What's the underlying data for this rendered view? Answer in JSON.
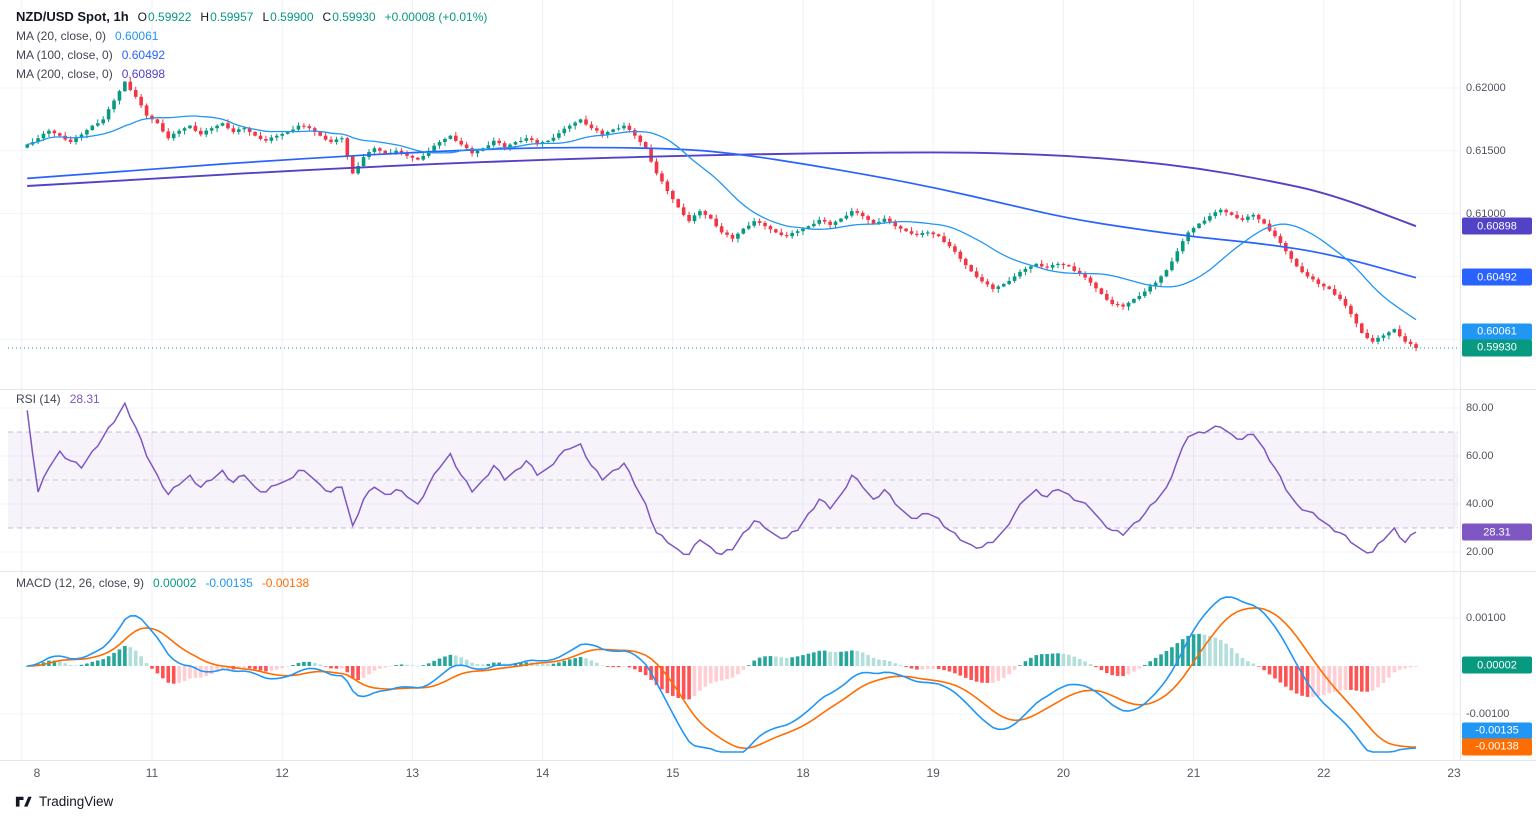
{
  "meta": {
    "watermark": "TradingView"
  },
  "legend": {
    "title": "NZD/USD Spot, 1h",
    "ohlc": [
      {
        "k": "O",
        "v": "0.59922"
      },
      {
        "k": "H",
        "v": "0.59957"
      },
      {
        "k": "L",
        "v": "0.59900"
      },
      {
        "k": "C",
        "v": "0.59930"
      }
    ],
    "change": "+0.00008 (+0.01%)",
    "ma_rows": [
      {
        "label": "MA (20, close, 0)",
        "value": "0.60061"
      },
      {
        "label": "MA (100, close, 0)",
        "value": "0.60492"
      },
      {
        "label": "MA (200, close, 0)",
        "value": "0.60898"
      }
    ],
    "rsi_label": "RSI (14)",
    "rsi_value": "28.31",
    "macd_label": "MACD (12, 26, close, 9)",
    "macd_values": {
      "hist": "0.00002",
      "macd": "-0.00135",
      "signal": "-0.00138"
    }
  },
  "chart_data": [
    {
      "type": "candlestick",
      "panel": "price",
      "title": "NZD/USD Spot, 1h",
      "timeframe": "1h",
      "x_day_labels": [
        "8",
        "11",
        "12",
        "13",
        "14",
        "15",
        "18",
        "19",
        "20",
        "21",
        "22",
        "23"
      ],
      "y_axis_labels": [
        {
          "text": "0.62000",
          "value": 0.62
        },
        {
          "text": "0.61500",
          "value": 0.615
        },
        {
          "text": "0.61000",
          "value": 0.61
        }
      ],
      "gridline_prices": [
        0.62,
        0.615,
        0.61,
        0.605,
        0.6
      ],
      "closes_2h": [
        0.6155,
        0.616,
        0.6166,
        0.6162,
        0.6157,
        0.6163,
        0.617,
        0.6175,
        0.619,
        0.6205,
        0.6193,
        0.6178,
        0.6172,
        0.616,
        0.6166,
        0.617,
        0.6163,
        0.6168,
        0.6172,
        0.6165,
        0.6168,
        0.6162,
        0.6158,
        0.6162,
        0.6165,
        0.617,
        0.6168,
        0.6162,
        0.6157,
        0.616,
        0.6132,
        0.6145,
        0.6152,
        0.6148,
        0.615,
        0.6146,
        0.6143,
        0.615,
        0.6157,
        0.6162,
        0.6155,
        0.6148,
        0.6152,
        0.6158,
        0.6153,
        0.6157,
        0.616,
        0.6156,
        0.6158,
        0.6164,
        0.617,
        0.6175,
        0.6168,
        0.6163,
        0.6167,
        0.617,
        0.6162,
        0.6152,
        0.6132,
        0.6118,
        0.6105,
        0.6094,
        0.6102,
        0.6096,
        0.6085,
        0.608,
        0.6088,
        0.6094,
        0.609,
        0.6085,
        0.6082,
        0.6086,
        0.609,
        0.6095,
        0.6091,
        0.6096,
        0.6102,
        0.6098,
        0.6092,
        0.6096,
        0.609,
        0.6086,
        0.6083,
        0.6085,
        0.6082,
        0.6074,
        0.6064,
        0.6054,
        0.6046,
        0.604,
        0.6044,
        0.605,
        0.6056,
        0.606,
        0.6057,
        0.606,
        0.6058,
        0.6052,
        0.6045,
        0.6036,
        0.6028,
        0.6026,
        0.6032,
        0.6038,
        0.6045,
        0.6055,
        0.607,
        0.6085,
        0.6092,
        0.6098,
        0.6103,
        0.6099,
        0.6095,
        0.6099,
        0.6092,
        0.6082,
        0.607,
        0.6058,
        0.605,
        0.6044,
        0.604,
        0.6032,
        0.602,
        0.6005,
        0.5998,
        0.6003,
        0.6008,
        0.5998,
        0.5993
      ],
      "last_price": 0.5993,
      "colors": {
        "up": "#089981",
        "down": "#f23645"
      },
      "overlays": [
        {
          "name": "MA 20",
          "color": "#2196f3",
          "current": 0.60061,
          "derive": "sma20"
        },
        {
          "name": "MA 100",
          "color": "#2962ff",
          "current": 0.60492,
          "points_2h": [
            [
              0,
              0.6128
            ],
            [
              12,
              0.6136
            ],
            [
              24,
              0.6143
            ],
            [
              36,
              0.6149
            ],
            [
              48,
              0.6153
            ],
            [
              60,
              0.6152
            ],
            [
              66,
              0.6147
            ],
            [
              72,
              0.6139
            ],
            [
              78,
              0.613
            ],
            [
              84,
              0.612
            ],
            [
              90,
              0.6108
            ],
            [
              96,
              0.6096
            ],
            [
              102,
              0.6088
            ],
            [
              108,
              0.6081
            ],
            [
              114,
              0.6076
            ],
            [
              120,
              0.6068
            ],
            [
              128,
              0.6049
            ]
          ]
        },
        {
          "name": "MA 200",
          "color": "#5242c6",
          "current": 0.60898,
          "points_2h": [
            [
              0,
              0.6122
            ],
            [
              12,
              0.6128
            ],
            [
              24,
              0.6134
            ],
            [
              36,
              0.6139
            ],
            [
              48,
              0.6143
            ],
            [
              60,
              0.6146
            ],
            [
              72,
              0.6148
            ],
            [
              84,
              0.6149
            ],
            [
              90,
              0.6148
            ],
            [
              96,
              0.6146
            ],
            [
              102,
              0.6142
            ],
            [
              108,
              0.6136
            ],
            [
              114,
              0.6127
            ],
            [
              120,
              0.6116
            ],
            [
              128,
              0.609
            ]
          ]
        }
      ],
      "axis_badges": [
        {
          "text": "0.60898",
          "value": 0.60898,
          "bg": "#5242c6"
        },
        {
          "text": "0.60492",
          "value": 0.60492,
          "bg": "#2962ff"
        },
        {
          "text": "0.60061",
          "value": 0.60061,
          "bg": "#2196f3"
        },
        {
          "text": "0.59930",
          "value": 0.5993,
          "bg": "#089981"
        }
      ]
    },
    {
      "type": "line",
      "panel": "rsi",
      "name": "RSI (14)",
      "color": "#7e57c2",
      "current": 28.31,
      "y_axis_labels": [
        {
          "text": "80.00",
          "value": 80
        },
        {
          "text": "60.00",
          "value": 60
        },
        {
          "text": "40.00",
          "value": 40
        },
        {
          "text": "20.00",
          "value": 20
        }
      ],
      "levels": {
        "upper": 70,
        "middle": 50,
        "lower": 30
      },
      "values_2h": [
        79,
        45,
        55,
        62,
        58,
        55,
        62,
        68,
        74,
        82,
        72,
        60,
        52,
        44,
        48,
        52,
        47,
        50,
        54,
        49,
        52,
        47,
        45,
        48,
        50,
        54,
        52,
        48,
        45,
        47,
        31,
        42,
        47,
        44,
        46,
        43,
        40,
        48,
        55,
        61,
        52,
        45,
        50,
        56,
        50,
        54,
        58,
        52,
        55,
        60,
        63,
        65,
        56,
        50,
        54,
        57,
        48,
        40,
        28,
        24,
        21,
        19,
        25,
        22,
        19,
        21,
        28,
        33,
        30,
        27,
        26,
        29,
        36,
        42,
        38,
        44,
        52,
        47,
        42,
        46,
        40,
        36,
        34,
        36,
        34,
        29,
        25,
        23,
        22,
        24,
        29,
        36,
        42,
        46,
        43,
        46,
        44,
        41,
        38,
        33,
        29,
        27,
        32,
        36,
        41,
        47,
        58,
        68,
        70,
        71,
        72,
        69,
        67,
        69,
        63,
        55,
        46,
        40,
        37,
        34,
        31,
        28,
        24,
        21,
        20,
        25,
        30,
        24,
        28.31
      ],
      "badge": {
        "text": "28.31",
        "value": 28.31,
        "bg": "#7e57c2"
      }
    },
    {
      "type": "macd",
      "panel": "macd",
      "name": "MACD (12, 26, close, 9)",
      "params": {
        "fast": 12,
        "slow": 26,
        "signal": 9
      },
      "current": {
        "hist": 2e-05,
        "macd": -0.00135,
        "signal": -0.00138
      },
      "y_axis_labels": [
        {
          "text": "0.00100",
          "value": 0.001
        },
        {
          "text": "-0.00100",
          "value": -0.001
        }
      ],
      "colors": {
        "macd": "#2196f3",
        "signal": "#ff6d00",
        "hist_grow_up": "#26a69a",
        "hist_fall_up": "#b2dfdb",
        "hist_grow_dn": "#ff5252",
        "hist_fall_dn": "#ffcdd2"
      },
      "badges": [
        {
          "text": "0.00002",
          "value": 2e-05,
          "bg": "#089981"
        },
        {
          "text": "-0.00135",
          "value": -0.00135,
          "bg": "#2196f3"
        },
        {
          "text": "-0.00138",
          "value": -0.00138,
          "bg": "#ff6d00"
        }
      ]
    }
  ]
}
